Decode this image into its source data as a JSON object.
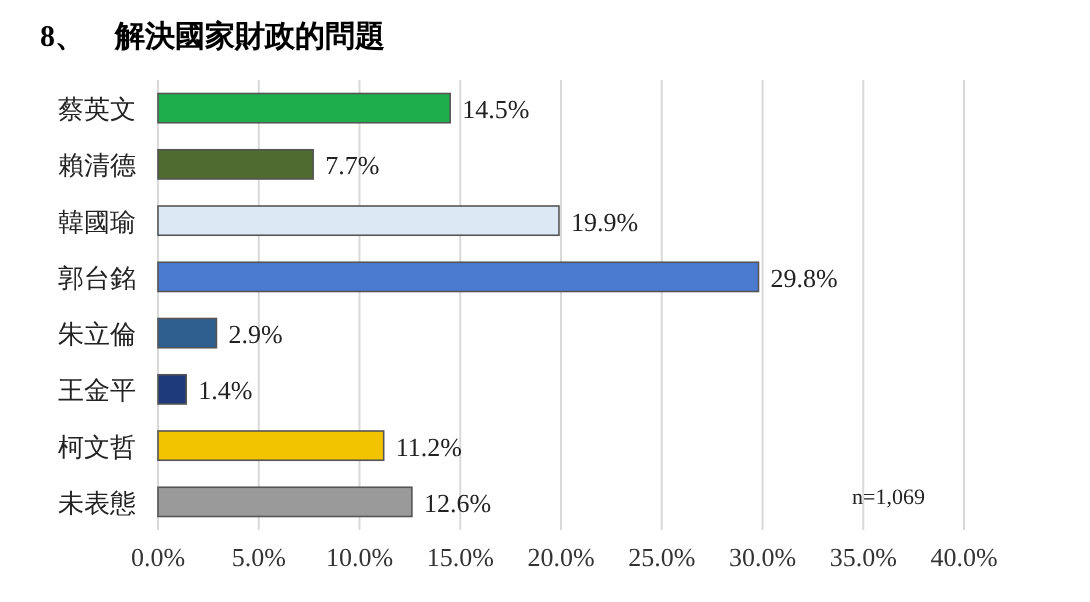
{
  "chart_data": {
    "type": "bar",
    "orientation": "horizontal",
    "title": "8、　解決國家財政的問題",
    "categories": [
      "蔡英文",
      "賴清德",
      "韓國瑜",
      "郭台銘",
      "朱立倫",
      "王金平",
      "柯文哲",
      "未表態"
    ],
    "values": [
      14.5,
      7.7,
      19.9,
      29.8,
      2.9,
      1.4,
      11.2,
      12.6
    ],
    "colors": [
      "#1fae4c",
      "#4f6b2f",
      "#dce9f5",
      "#4a7bd0",
      "#2f5f8f",
      "#1f3a7a",
      "#f2c400",
      "#9a9a9a"
    ],
    "value_labels": [
      "14.5%",
      "7.7%",
      "19.9%",
      "29.8%",
      "2.9%",
      "1.4%",
      "11.2%",
      "12.6%"
    ],
    "xlim": [
      0,
      40
    ],
    "xticks": [
      {
        "value": 0,
        "label": "0.0%"
      },
      {
        "value": 5,
        "label": "5.0%"
      },
      {
        "value": 10,
        "label": "10.0%"
      },
      {
        "value": 15,
        "label": "15.0%"
      },
      {
        "value": 20,
        "label": "20.0%"
      },
      {
        "value": 25,
        "label": "25.0%"
      },
      {
        "value": 30,
        "label": "30.0%"
      },
      {
        "value": 35,
        "label": "35.0%"
      },
      {
        "value": 40,
        "label": "40.0%"
      }
    ],
    "grid": "x",
    "annotations": [
      "n=1,069"
    ]
  }
}
